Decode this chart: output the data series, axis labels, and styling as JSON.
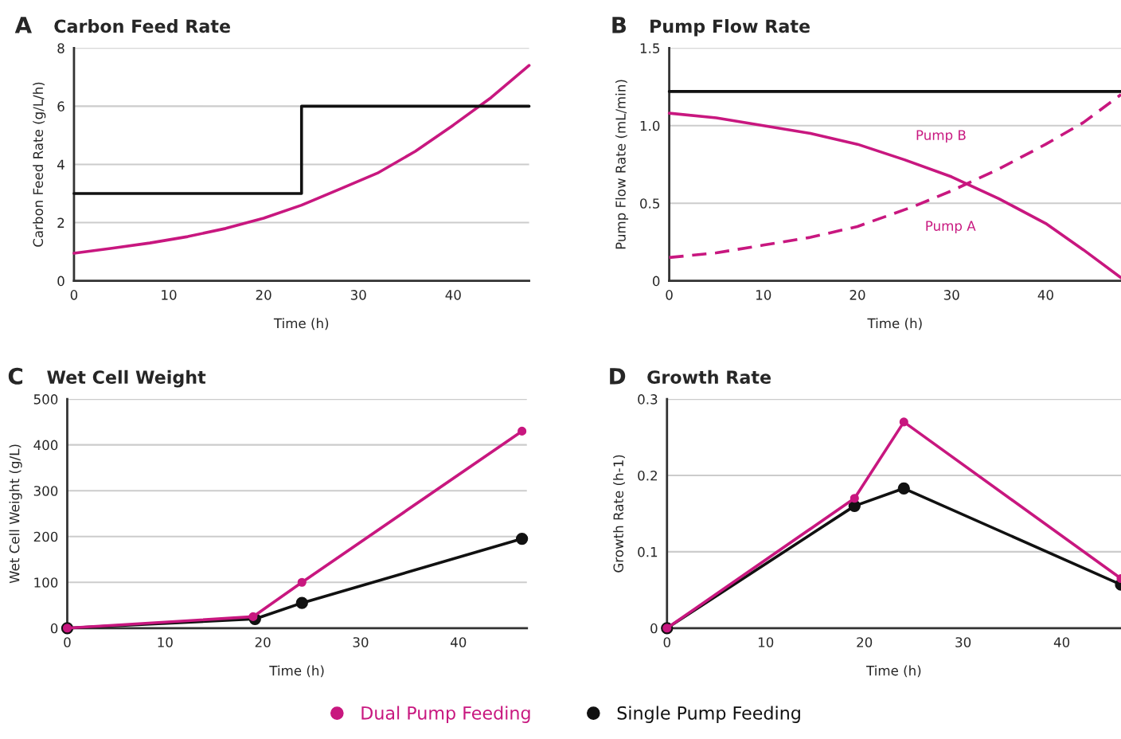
{
  "chart_data": [
    {
      "type": "line",
      "title": "Carbon Feed Rate",
      "annotations": [
        "A"
      ],
      "xlabel": "Time (h)",
      "ylabel": "Carbon Feed Rate (g/L/h)",
      "xlim": [
        0,
        48
      ],
      "ylim": [
        0,
        8
      ],
      "xticks": [
        0,
        10,
        20,
        30,
        40
      ],
      "yticks": [
        0,
        2,
        4,
        6,
        8
      ],
      "grid": "y",
      "series": [
        {
          "color": "#111111",
          "type": "step",
          "x": [
            0,
            24,
            48
          ],
          "values": [
            3,
            6,
            6
          ]
        },
        {
          "color": "#c8177f",
          "x": [
            0,
            4,
            8,
            12,
            16,
            20,
            24,
            28,
            32,
            36,
            40,
            44,
            48
          ],
          "values": [
            0.95,
            1.12,
            1.3,
            1.52,
            1.8,
            2.15,
            2.6,
            3.15,
            3.7,
            4.45,
            5.35,
            6.3,
            7.4
          ]
        }
      ]
    },
    {
      "type": "line",
      "title": "Pump Flow Rate",
      "annotations": [
        "B"
      ],
      "xlabel": "Time (h)",
      "ylabel": "Pump Flow Rate (mL/min)",
      "xlim": [
        0,
        48
      ],
      "ylim": [
        0,
        1.5
      ],
      "xticks": [
        0,
        10,
        20,
        30,
        40
      ],
      "yticks": [
        0,
        0.5,
        {
          "value": 1,
          "label": "1.0"
        },
        1.5
      ],
      "grid": "y",
      "series": [
        {
          "color": "#111111",
          "x": [
            0,
            48
          ],
          "values": [
            1.22,
            1.22
          ]
        },
        {
          "name": "Pump B",
          "color": "#c8177f",
          "line_style": "solid",
          "x": [
            0,
            5,
            10,
            15,
            20,
            25,
            30,
            35,
            40,
            44,
            48
          ],
          "values": [
            1.08,
            1.05,
            1.0,
            0.95,
            0.88,
            0.78,
            0.67,
            0.53,
            0.37,
            0.2,
            0.02
          ]
        },
        {
          "name": "Pump A",
          "color": "#c8177f",
          "line_style": "dashed",
          "x": [
            0,
            5,
            10,
            15,
            20,
            26,
            30,
            35,
            40,
            44,
            48
          ],
          "values": [
            0.15,
            0.18,
            0.23,
            0.28,
            0.35,
            0.48,
            0.58,
            0.72,
            0.88,
            1.02,
            1.2
          ]
        }
      ]
    },
    {
      "type": "line",
      "title": "Wet Cell Weight",
      "annotations": [
        "C"
      ],
      "xlabel": "Time (h)",
      "ylabel": "Wet Cell Weight (g/L)",
      "xlim": [
        0,
        47
      ],
      "ylim": [
        0,
        500
      ],
      "xticks": [
        0,
        10,
        20,
        30,
        40
      ],
      "yticks": [
        0,
        100,
        200,
        300,
        400,
        500
      ],
      "grid": "y",
      "marker": "circle",
      "legend": "bottom",
      "series": [
        {
          "name": "Dual Pump Feeding",
          "color": "#c8177f",
          "x": [
            0,
            19,
            24,
            46.5
          ],
          "values": [
            0,
            25,
            100,
            430
          ]
        },
        {
          "name": "Single Pump Feeding",
          "color": "#111111",
          "x": [
            0,
            19.2,
            24,
            46.5
          ],
          "values": [
            0,
            20,
            55,
            195
          ]
        }
      ]
    },
    {
      "type": "line",
      "title": "Growth Rate",
      "annotations": [
        "D"
      ],
      "xlabel": "Time (h)",
      "ylabel": "Growth Rate (h-1)",
      "xlim": [
        0,
        46
      ],
      "ylim": [
        0,
        0.3
      ],
      "xticks": [
        0,
        10,
        20,
        30,
        40
      ],
      "yticks": [
        0,
        0.1,
        0.2,
        0.3
      ],
      "grid": "y",
      "marker": "circle",
      "series": [
        {
          "color": "#c8177f",
          "x": [
            0,
            19,
            24,
            46
          ],
          "values": [
            0,
            0.17,
            0.27,
            0.065
          ]
        },
        {
          "color": "#111111",
          "x": [
            0,
            19,
            24,
            46
          ],
          "values": [
            0,
            0.16,
            0.183,
            0.057
          ]
        }
      ]
    }
  ]
}
